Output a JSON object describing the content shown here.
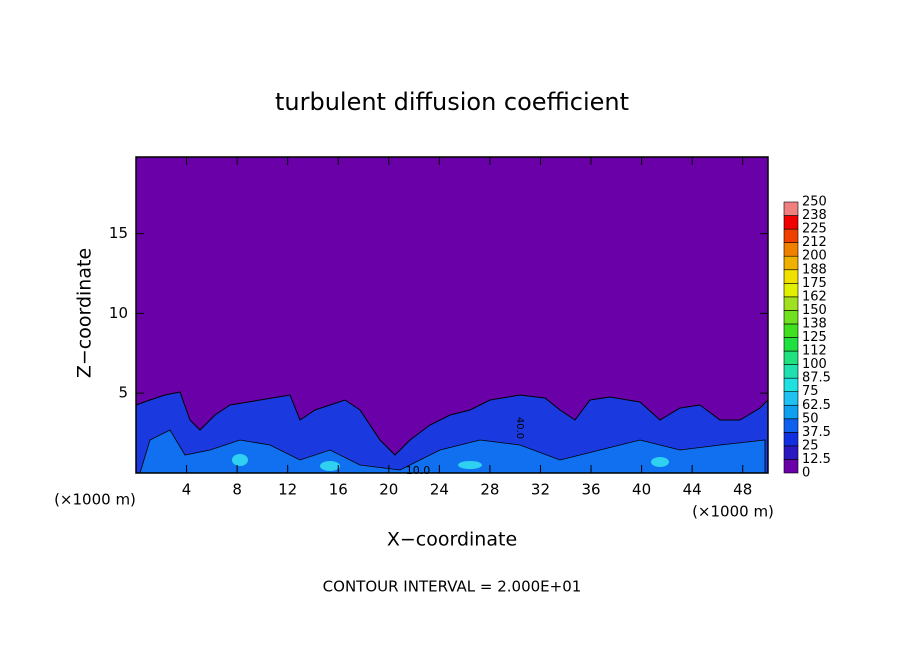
{
  "chart_data": {
    "type": "contour",
    "title": "turbulent diffusion coefficient",
    "xlabel": "X−coordinate",
    "ylabel": "Z−coordinate",
    "unit_label": "(×1000 m)",
    "annotation": "CONTOUR INTERVAL = 2.000E+01",
    "contour_labels": [
      "40.0",
      "10.0"
    ],
    "xlim": [
      0,
      50
    ],
    "ylim": [
      0,
      19.8
    ],
    "xticks": [
      4,
      8,
      12,
      16,
      20,
      24,
      28,
      32,
      36,
      40,
      44,
      48
    ],
    "yticks": [
      5,
      10,
      15
    ],
    "colorbar": {
      "levels": [
        0,
        12.5,
        25,
        37.5,
        50,
        62.5,
        75,
        87.5,
        100,
        112,
        125,
        138,
        150,
        162,
        175,
        188,
        200,
        212,
        225,
        238,
        250
      ],
      "colors": [
        "#6a00a8",
        "#2a18c0",
        "#1030e0",
        "#1060f0",
        "#10a0f0",
        "#20c0f0",
        "#20e0e0",
        "#20e0b0",
        "#20e080",
        "#20e040",
        "#40e020",
        "#70e020",
        "#a0e020",
        "#e0f000",
        "#f0e000",
        "#f0b000",
        "#f08000",
        "#f04000",
        "#f00000",
        "#f08080"
      ]
    }
  }
}
